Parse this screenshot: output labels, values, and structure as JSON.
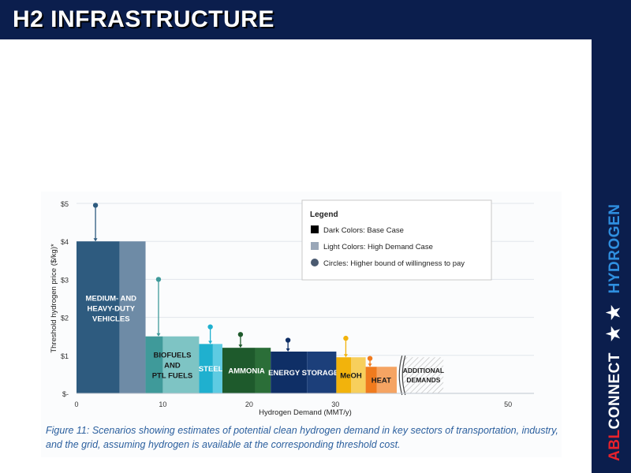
{
  "header": {
    "title": "H2 INFRASTRUCTURE"
  },
  "sidebar": {
    "brand_abl": "ABL",
    "brand_connect": "CONNECT",
    "brand_stars": "★ ★",
    "brand_hydrogen": "HYDROGEN"
  },
  "colors": {
    "navy": "#0b1e4d",
    "brand_red": "#e8222c",
    "brand_blue": "#2f8fe0"
  },
  "chart_data": {
    "type": "bar",
    "xlabel": "Hydrogen Demand (MMT/y)",
    "ylabel": "Threshold hydrogen price ($/kg)*",
    "xlim": [
      0,
      53
    ],
    "ylim": [
      0,
      5
    ],
    "x_ticks": [
      {
        "value": 0,
        "label": "0"
      },
      {
        "value": 10,
        "label": "10"
      },
      {
        "value": 20,
        "label": "20"
      },
      {
        "value": 30,
        "label": "30"
      },
      {
        "value": 50,
        "label": "50"
      }
    ],
    "y_ticks": [
      {
        "value": 0,
        "label": "$-"
      },
      {
        "value": 1,
        "label": "$1"
      },
      {
        "value": 2,
        "label": "$2"
      },
      {
        "value": 3,
        "label": "$3"
      },
      {
        "value": 4,
        "label": "$4"
      },
      {
        "value": 5,
        "label": "$5"
      }
    ],
    "legend": {
      "title": "Legend",
      "position": "top-right",
      "items": [
        {
          "label": "Dark Colors: Base Case",
          "marker": "square",
          "color": "#000000"
        },
        {
          "label": "Light Colors: High Demand Case",
          "marker": "square",
          "color": "#9aa7b8"
        },
        {
          "label": "Circles: Higher bound of willingness to pay",
          "marker": "circle",
          "color": "#4a5a70"
        }
      ]
    },
    "sectors": [
      {
        "label": [
          "MEDIUM- AND",
          "HEAVY-DUTY",
          "VEHICLES"
        ],
        "label_color": "#ffffff",
        "price": 4.0,
        "base": [
          0,
          5
        ],
        "high": [
          5,
          8
        ],
        "wtp": 4.95,
        "wtp_x": 2.2,
        "base_color": "#2e5b7f",
        "high_color": "#6e8ba6",
        "wtp_color": "#2e5b7f"
      },
      {
        "label": [
          "BIOFUELS",
          "AND",
          "PTL FUELS"
        ],
        "label_color": "#1a1a1a",
        "price": 1.5,
        "base": [
          8,
          10
        ],
        "high": [
          10,
          14.2
        ],
        "wtp": 3.0,
        "wtp_x": 9.5,
        "base_color": "#3f9a9a",
        "high_color": "#7ec4c4",
        "wtp_color": "#3f9a9a"
      },
      {
        "label": [
          "STEEL"
        ],
        "label_color": "#ffffff",
        "price": 1.3,
        "base": [
          14.2,
          15.8
        ],
        "high": [
          15.8,
          16.9
        ],
        "wtp": 1.75,
        "wtp_x": 15.5,
        "base_color": "#1fb0cf",
        "high_color": "#5ecbe2",
        "wtp_color": "#1fb0cf"
      },
      {
        "label": [
          "AMMONIA"
        ],
        "label_color": "#ffffff",
        "price": 1.2,
        "base": [
          16.9,
          20.7
        ],
        "high": [
          20.7,
          22.5
        ],
        "wtp": 1.55,
        "wtp_x": 19.0,
        "base_color": "#1e5a2c",
        "high_color": "#2b6e38",
        "wtp_color": "#1e5a2c"
      },
      {
        "label": [
          "ENERGY STORAGE"
        ],
        "label_color": "#ffffff",
        "price": 1.1,
        "base": [
          22.5,
          26.7
        ],
        "high": [
          26.7,
          30.1
        ],
        "wtp": 1.4,
        "wtp_x": 24.5,
        "base_color": "#0f2f66",
        "high_color": "#1c3f7a",
        "wtp_color": "#0f2f66"
      },
      {
        "label": [
          "MeOH"
        ],
        "label_color": "#1a1a1a",
        "price": 0.95,
        "base": [
          30.1,
          31.8
        ],
        "high": [
          31.8,
          33.5
        ],
        "wtp": 1.45,
        "wtp_x": 31.2,
        "base_color": "#f2b30c",
        "high_color": "#f7cf5c",
        "wtp_color": "#f2b30c"
      },
      {
        "label": [
          "HEAT"
        ],
        "label_color": "#1a1a1a",
        "price": 0.7,
        "base": [
          33.5,
          34.8
        ],
        "high": [
          34.8,
          37.1
        ],
        "wtp": 0.92,
        "wtp_x": 34.0,
        "base_color": "#f07b1e",
        "high_color": "#f5a463",
        "wtp_color": "#f07b1e"
      }
    ],
    "additional": {
      "label": [
        "ADDITIONAL",
        "DEMANDS"
      ],
      "start": 37.9,
      "end": 42.5,
      "top": 0.95
    },
    "caption": "Figure 11: Scenarios showing estimates of potential clean hydrogen demand in key sectors of transportation, industry, and the grid, assuming hydrogen is available at the corresponding threshold cost."
  }
}
